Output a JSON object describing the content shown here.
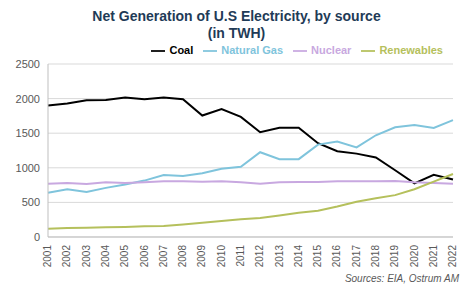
{
  "chart_data": {
    "type": "line",
    "title": "Net Generation of U.S Electricity, by source",
    "subtitle": "(in TWH)",
    "annotation": "Sources: EIA, Ostrum AM",
    "categories": [
      "2001",
      "2002",
      "2003",
      "2004",
      "2005",
      "2006",
      "2007",
      "2008",
      "2009",
      "2010",
      "2011",
      "2012",
      "2013",
      "2014",
      "2015",
      "2016",
      "2017",
      "2018",
      "2019",
      "2020",
      "2021",
      "2022"
    ],
    "series": [
      {
        "name": "Coal",
        "color": "#000000",
        "values": [
          1900,
          1930,
          1975,
          1980,
          2015,
          1990,
          2015,
          1990,
          1755,
          1850,
          1735,
          1515,
          1580,
          1580,
          1355,
          1240,
          1205,
          1150,
          965,
          775,
          900,
          830
        ]
      },
      {
        "name": "Natural Gas",
        "color": "#7fc4dc",
        "values": [
          640,
          690,
          650,
          710,
          760,
          815,
          895,
          880,
          920,
          985,
          1015,
          1225,
          1125,
          1125,
          1335,
          1380,
          1295,
          1470,
          1585,
          1620,
          1575,
          1690
        ]
      },
      {
        "name": "Nuclear",
        "color": "#c8a8e0",
        "values": [
          770,
          780,
          765,
          790,
          780,
          790,
          805,
          805,
          800,
          805,
          790,
          770,
          790,
          795,
          795,
          805,
          805,
          805,
          810,
          790,
          780,
          770
        ]
      },
      {
        "name": "Renewables",
        "color": "#b5c05c",
        "values": [
          120,
          130,
          135,
          140,
          145,
          155,
          160,
          180,
          205,
          230,
          255,
          275,
          310,
          350,
          380,
          440,
          510,
          560,
          605,
          690,
          800,
          910
        ]
      }
    ],
    "ylim": [
      0,
      2500
    ],
    "yticks": [
      0,
      500,
      1000,
      1500,
      2000,
      2500
    ],
    "grid": true,
    "legend": "top"
  }
}
